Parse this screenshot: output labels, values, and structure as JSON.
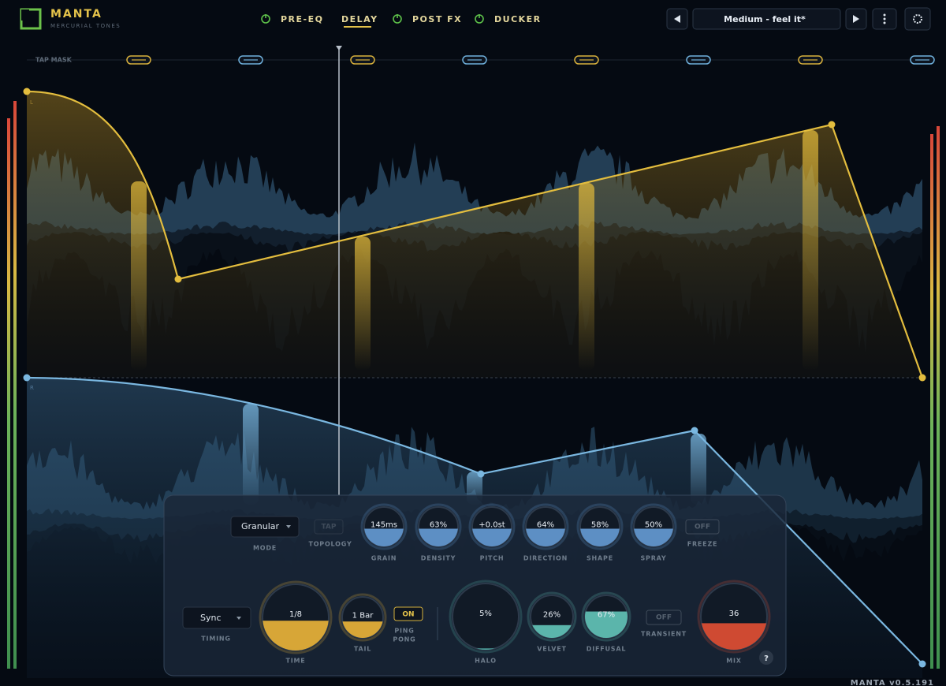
{
  "header": {
    "logo_title": "MANTA",
    "logo_subtitle": "MERCURIAL TONES",
    "tabs": [
      "PRE-EQ",
      "DELAY",
      "POST FX",
      "DUCKER"
    ],
    "preset": "Medium - feel it*"
  },
  "lanes": {
    "tap_mask": "TAP MASK",
    "left": "L",
    "right": "R"
  },
  "panel": {
    "mode": {
      "value": "Granular",
      "label": "MODE"
    },
    "topology": {
      "value": "TAP",
      "label": "TOPOLOGY"
    },
    "knobs": [
      {
        "value": "145ms",
        "label": "GRAIN"
      },
      {
        "value": "63%",
        "label": "DENSITY"
      },
      {
        "value": "+0.0st",
        "label": "PITCH"
      },
      {
        "value": "64%",
        "label": "DIRECTION"
      },
      {
        "value": "58%",
        "label": "SHAPE"
      },
      {
        "value": "50%",
        "label": "SPRAY"
      }
    ],
    "freeze": {
      "value": "OFF",
      "label": "FREEZE"
    },
    "timing": {
      "value": "Sync",
      "label": "TIMING"
    },
    "time": {
      "value": "1/8",
      "label": "TIME"
    },
    "tail": {
      "value": "1 Bar",
      "label": "TAIL"
    },
    "ping_pong": {
      "value": "ON",
      "label": [
        "PING",
        "PONG"
      ]
    },
    "halo": {
      "value": "5%",
      "label": "HALO"
    },
    "velvet": {
      "value": "26%",
      "label": "VELVET"
    },
    "diffusal": {
      "value": "67%",
      "label": "DIFFUSAL"
    },
    "transient": {
      "value": "OFF",
      "label": "TRANSIENT"
    },
    "mix": {
      "value": "36",
      "label": "MIX"
    },
    "help": "?"
  },
  "footer": {
    "version": "MANTA v0.5.191"
  }
}
